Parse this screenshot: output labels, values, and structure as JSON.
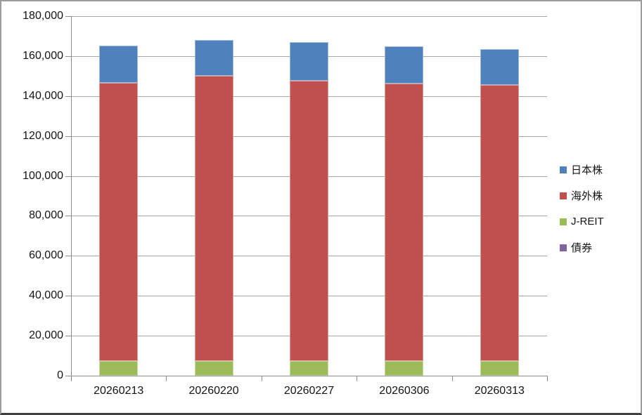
{
  "chart_data": {
    "type": "bar",
    "stacked": true,
    "title": "",
    "xlabel": "",
    "ylabel": "",
    "categories": [
      "20260213",
      "20260220",
      "20260227",
      "20260306",
      "20260313"
    ],
    "series": [
      {
        "name": "日本株",
        "color": "#4F81BD",
        "values": [
          18700,
          18000,
          19300,
          18600,
          17900
        ]
      },
      {
        "name": "海外株",
        "color": "#C0504D",
        "values": [
          139100,
          142600,
          140200,
          138800,
          138100
        ]
      },
      {
        "name": "J-REIT",
        "color": "#9BBB59",
        "values": [
          7500,
          7500,
          7500,
          7500,
          7500
        ]
      },
      {
        "name": "債券",
        "color": "#8064A2",
        "values": [
          0,
          0,
          0,
          0,
          0
        ]
      }
    ],
    "stack_order_bottom_to_top": [
      "債券",
      "J-REIT",
      "海外株",
      "日本株"
    ],
    "totals": [
      165300,
      168100,
      167000,
      164900,
      163500
    ],
    "ylim": [
      0,
      180000
    ],
    "ytick_interval": 20000,
    "ytick_labels": [
      "0",
      "20,000",
      "40,000",
      "60,000",
      "80,000",
      "100,000",
      "120,000",
      "140,000",
      "160,000",
      "180,000"
    ],
    "grid": true,
    "legend_position": "right",
    "colors": {
      "gridline": "#a6a6a6",
      "axis": "#8c8c8c",
      "text": "#141414",
      "background": "#ffffff"
    }
  }
}
